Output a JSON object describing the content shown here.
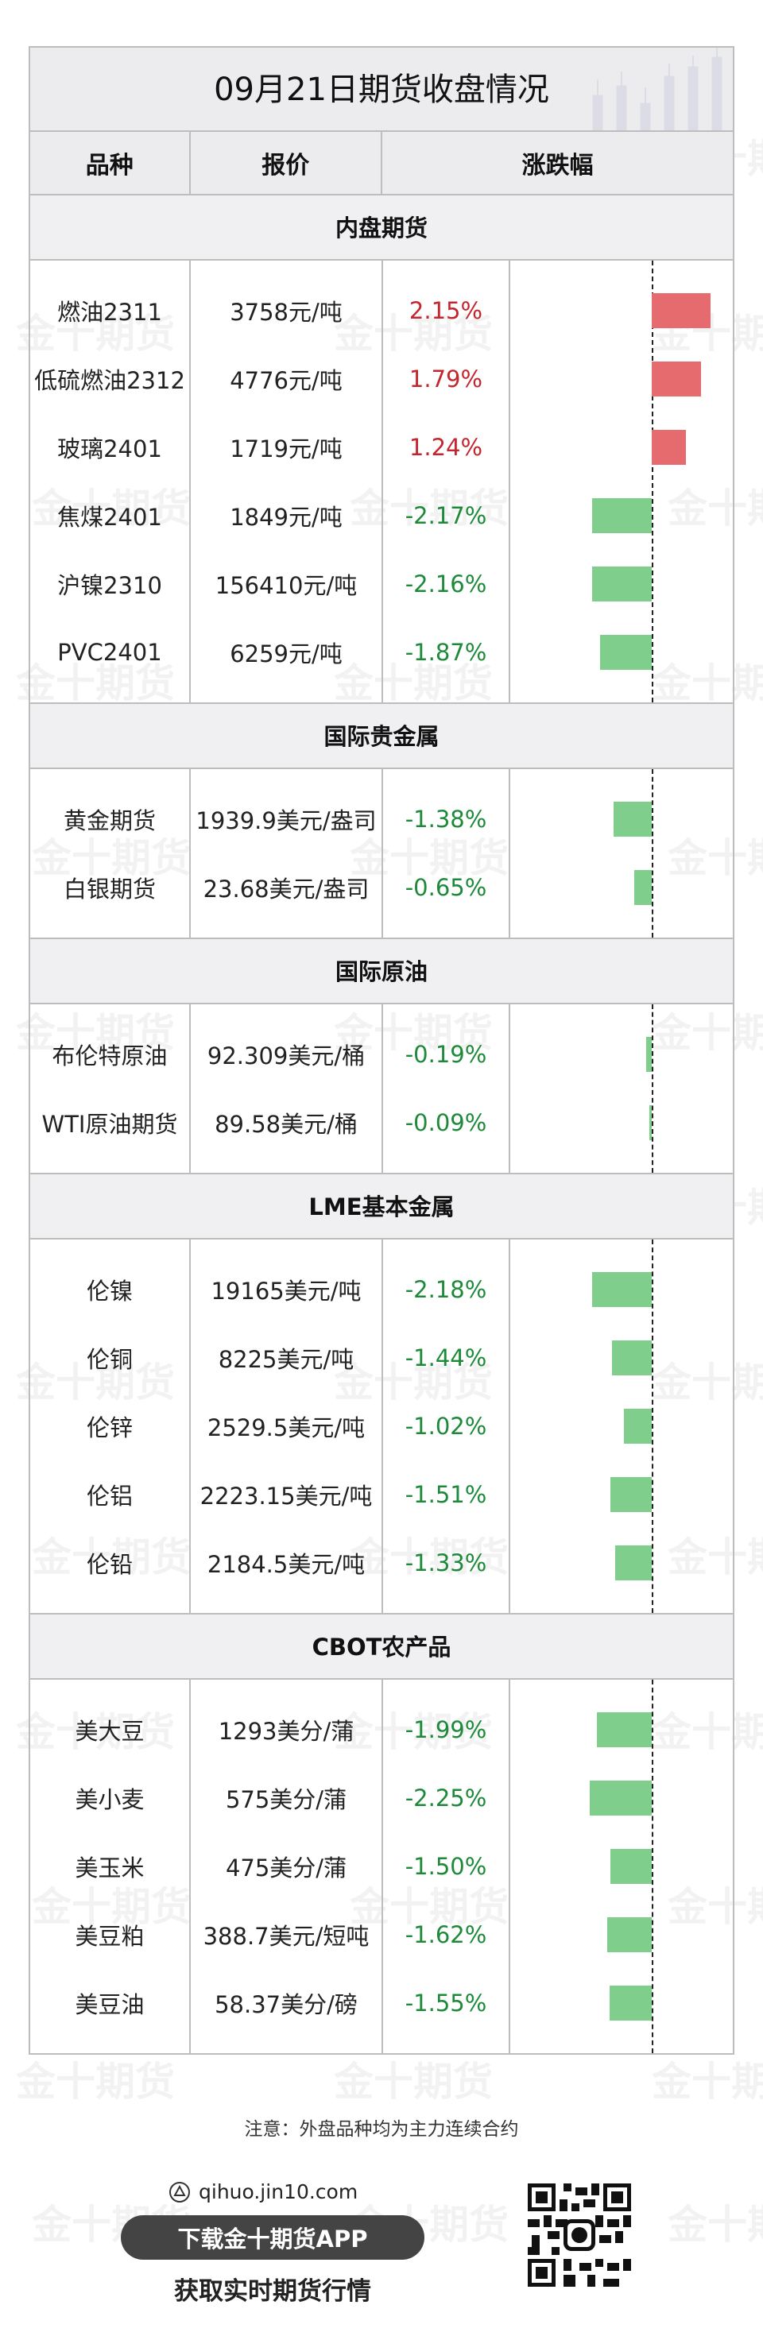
{
  "title": "09月21日期货收盘情况",
  "watermark": "金十期货",
  "headers": {
    "name": "品种",
    "price": "报价",
    "change": "涨跌幅"
  },
  "sections": [
    {
      "title": "内盘期货",
      "rows": [
        {
          "name": "燃油2311",
          "price": "3758元/吨",
          "change": "2.15%",
          "pct": 2.15
        },
        {
          "name": "低硫燃油2312",
          "price": "4776元/吨",
          "change": "1.79%",
          "pct": 1.79
        },
        {
          "name": "玻璃2401",
          "price": "1719元/吨",
          "change": "1.24%",
          "pct": 1.24
        },
        {
          "name": "焦煤2401",
          "price": "1849元/吨",
          "change": "-2.17%",
          "pct": -2.17
        },
        {
          "name": "沪镍2310",
          "price": "156410元/吨",
          "change": "-2.16%",
          "pct": -2.16
        },
        {
          "name": "PVC2401",
          "price": "6259元/吨",
          "change": "-1.87%",
          "pct": -1.87
        }
      ]
    },
    {
      "title": "国际贵金属",
      "rows": [
        {
          "name": "黄金期货",
          "price": "1939.9美元/盎司",
          "change": "-1.38%",
          "pct": -1.38
        },
        {
          "name": "白银期货",
          "price": "23.68美元/盎司",
          "change": "-0.65%",
          "pct": -0.65
        }
      ]
    },
    {
      "title": "国际原油",
      "rows": [
        {
          "name": "布伦特原油",
          "price": "92.309美元/桶",
          "change": "-0.19%",
          "pct": -0.19
        },
        {
          "name": "WTI原油期货",
          "price": "89.58美元/桶",
          "change": "-0.09%",
          "pct": -0.09
        }
      ]
    },
    {
      "title": "LME基本金属",
      "rows": [
        {
          "name": "伦镍",
          "price": "19165美元/吨",
          "change": "-2.18%",
          "pct": -2.18
        },
        {
          "name": "伦铜",
          "price": "8225美元/吨",
          "change": "-1.44%",
          "pct": -1.44
        },
        {
          "name": "伦锌",
          "price": "2529.5美元/吨",
          "change": "-1.02%",
          "pct": -1.02
        },
        {
          "name": "伦铝",
          "price": "2223.15美元/吨",
          "change": "-1.51%",
          "pct": -1.51
        },
        {
          "name": "伦铅",
          "price": "2184.5美元/吨",
          "change": "-1.33%",
          "pct": -1.33
        }
      ]
    },
    {
      "title": "CBOT农产品",
      "rows": [
        {
          "name": "美大豆",
          "price": "1293美分/蒲",
          "change": "-1.99%",
          "pct": -1.99
        },
        {
          "name": "美小麦",
          "price": "575美分/蒲",
          "change": "-2.25%",
          "pct": -2.25
        },
        {
          "name": "美玉米",
          "price": "475美分/蒲",
          "change": "-1.50%",
          "pct": -1.5
        },
        {
          "name": "美豆粕",
          "price": "388.7美元/短吨",
          "change": "-1.62%",
          "pct": -1.62
        },
        {
          "name": "美豆油",
          "price": "58.37美分/磅",
          "change": "-1.55%",
          "pct": -1.55
        }
      ]
    }
  ],
  "note": "注意：外盘品种均为主力连续合约",
  "footer": {
    "site": "qihuo.jin10.com",
    "download": "下载金十期货APP",
    "tagline": "获取实时期货行情"
  },
  "colors": {
    "up": "#c4262e",
    "down": "#1d8a3a",
    "up_bar": "#e56b6f",
    "down_bar": "#7fce8c"
  },
  "icons": {
    "site": "jin10-logo-icon",
    "qr": "qr-code-icon"
  }
}
